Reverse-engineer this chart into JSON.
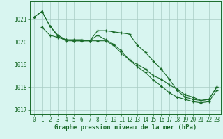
{
  "xlabel": "Graphe pression niveau de la mer (hPa)",
  "bg_color": "#d8f5f0",
  "grid_color": "#a8ccc4",
  "line_color": "#1a6b2a",
  "marker_color": "#1a6b2a",
  "xlim": [
    -0.5,
    23.5
  ],
  "ylim": [
    1016.8,
    1021.8
  ],
  "yticks": [
    1017,
    1018,
    1019,
    1020,
    1021
  ],
  "xticks": [
    0,
    1,
    2,
    3,
    4,
    5,
    6,
    7,
    8,
    9,
    10,
    11,
    12,
    13,
    14,
    15,
    16,
    17,
    18,
    19,
    20,
    21,
    22,
    23
  ],
  "line1_x": [
    0,
    1,
    2,
    3,
    4,
    5,
    6,
    7,
    8,
    9,
    10,
    11,
    12,
    13,
    14,
    15,
    16,
    17,
    18,
    19,
    20,
    21,
    22,
    23
  ],
  "line1_y": [
    1021.1,
    1021.35,
    1020.7,
    1020.3,
    1020.1,
    1020.1,
    1020.1,
    1020.05,
    1020.3,
    1020.1,
    1019.9,
    1019.6,
    1019.2,
    1019.0,
    1018.8,
    1018.5,
    1018.35,
    1018.1,
    1017.9,
    1017.65,
    1017.55,
    1017.4,
    1017.45,
    1018.0
  ],
  "line2_x": [
    0,
    1,
    2,
    3,
    4,
    5,
    6,
    7,
    8,
    9,
    10,
    11,
    12,
    13,
    14,
    15,
    16,
    17,
    18,
    19,
    20,
    21,
    22,
    23
  ],
  "line2_y": [
    1021.1,
    1021.35,
    1020.7,
    1020.25,
    1020.05,
    1020.05,
    1020.05,
    1020.05,
    1020.5,
    1020.5,
    1020.45,
    1020.4,
    1020.35,
    1019.85,
    1019.55,
    1019.15,
    1018.8,
    1018.35,
    1017.85,
    1017.55,
    1017.45,
    1017.4,
    1017.45,
    1018.0
  ],
  "line3_x": [
    1,
    2,
    3,
    4,
    5,
    6,
    7,
    8,
    9,
    10,
    11,
    12,
    13,
    14,
    15,
    16,
    17,
    18,
    19,
    20,
    21,
    22,
    23
  ],
  "line3_y": [
    1020.65,
    1020.3,
    1020.2,
    1020.1,
    1020.05,
    1020.05,
    1020.05,
    1020.05,
    1020.05,
    1019.85,
    1019.5,
    1019.2,
    1018.9,
    1018.65,
    1018.3,
    1018.05,
    1017.75,
    1017.55,
    1017.45,
    1017.35,
    1017.3,
    1017.35,
    1017.85
  ],
  "font_family": "monospace",
  "xlabel_fontsize": 6.5,
  "tick_fontsize": 5.5
}
